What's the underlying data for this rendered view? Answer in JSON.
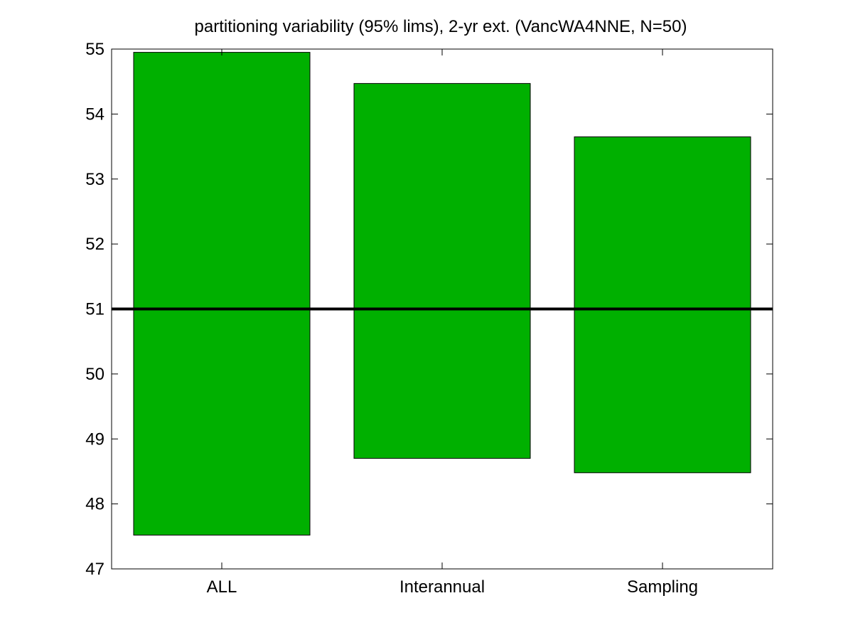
{
  "chart_data": {
    "type": "bar",
    "title": "partitioning variability (95% lims), 2-yr ext. (VancWA4NNE, N=50)",
    "xlabel": "",
    "ylabel": "",
    "categories": [
      "ALL",
      "Interannual",
      "Sampling"
    ],
    "ranges": [
      {
        "category": "ALL",
        "low": 47.52,
        "high": 54.95
      },
      {
        "category": "Interannual",
        "low": 48.7,
        "high": 54.47
      },
      {
        "category": "Sampling",
        "low": 48.48,
        "high": 53.65
      }
    ],
    "reference_line": 51,
    "ylim": [
      47,
      55
    ],
    "yticks": [
      47,
      48,
      49,
      50,
      51,
      52,
      53,
      54,
      55
    ],
    "bar_color": "#00b000",
    "reference_line_color": "#000000",
    "grid": false,
    "legend": "none"
  }
}
